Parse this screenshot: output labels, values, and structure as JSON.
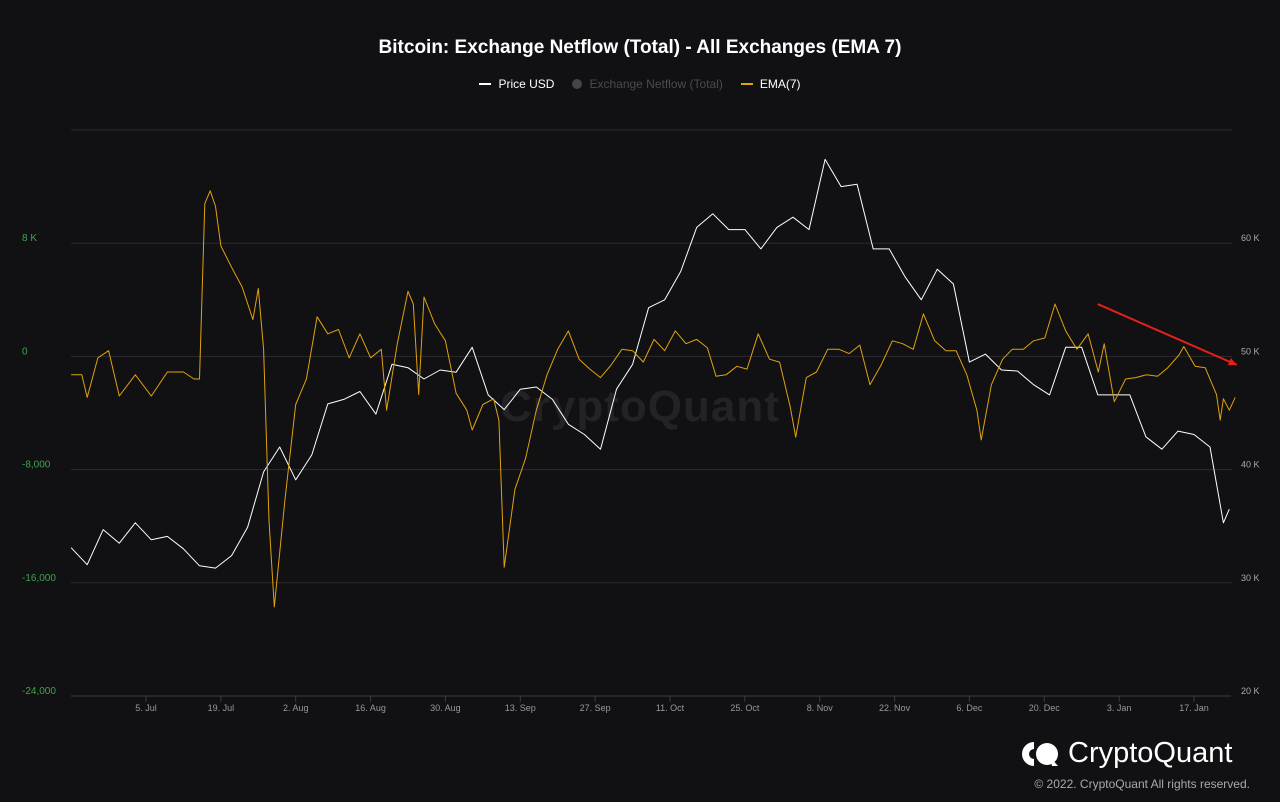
{
  "chart_data": {
    "type": "line",
    "title": "Bitcoin: Exchange Netflow (Total) - All Exchanges (EMA 7)",
    "legend": [
      {
        "name": "Price USD",
        "color": "#ffffff",
        "visible": true
      },
      {
        "name": "Exchange Netflow (Total)",
        "color": "#44444a",
        "visible": false
      },
      {
        "name": "EMA(7)",
        "color": "#e0a20e",
        "visible": true
      }
    ],
    "legend_position": "top-center",
    "x_start_date": "2021-06-21",
    "x_unit": "days since start",
    "x_range": [
      0,
      217
    ],
    "x_ticks": [
      {
        "day": 14,
        "label": "5. Jul"
      },
      {
        "day": 28,
        "label": "19. Jul"
      },
      {
        "day": 42,
        "label": "2. Aug"
      },
      {
        "day": 56,
        "label": "16. Aug"
      },
      {
        "day": 70,
        "label": "30. Aug"
      },
      {
        "day": 84,
        "label": "13. Sep"
      },
      {
        "day": 98,
        "label": "27. Sep"
      },
      {
        "day": 112,
        "label": "11. Oct"
      },
      {
        "day": 126,
        "label": "25. Oct"
      },
      {
        "day": 140,
        "label": "8. Nov"
      },
      {
        "day": 154,
        "label": "22. Nov"
      },
      {
        "day": 168,
        "label": "6. Dec"
      },
      {
        "day": 182,
        "label": "20. Dec"
      },
      {
        "day": 196,
        "label": "3. Jan"
      },
      {
        "day": 210,
        "label": "17. Jan"
      }
    ],
    "y_left": {
      "label": "Exchange Netflow",
      "range": [
        -24000,
        16000
      ],
      "color": "#3fa34d",
      "ticks": [
        {
          "v": 8000,
          "label": "8 K"
        },
        {
          "v": 0,
          "label": "0"
        },
        {
          "v": -8000,
          "label": "-8,000"
        },
        {
          "v": -16000,
          "label": "-16,000"
        },
        {
          "v": -24000,
          "label": "-24,000"
        }
      ]
    },
    "y_right": {
      "label": "Price USD",
      "range": [
        20000,
        70000
      ],
      "color": "#aaaaaa",
      "ticks": [
        {
          "v": 60000,
          "label": "60 K"
        },
        {
          "v": 50000,
          "label": "50 K"
        },
        {
          "v": 40000,
          "label": "40 K"
        },
        {
          "v": 30000,
          "label": "30 K"
        },
        {
          "v": 20000,
          "label": "20 K"
        }
      ]
    },
    "grid": true,
    "series": [
      {
        "name": "Price USD",
        "axis": "right",
        "unit": "USD (thousands)",
        "points": [
          [
            0,
            33.1
          ],
          [
            3,
            31.6
          ],
          [
            6,
            34.7
          ],
          [
            9,
            33.5
          ],
          [
            12,
            35.3
          ],
          [
            15,
            33.8
          ],
          [
            18,
            34.1
          ],
          [
            21,
            33.0
          ],
          [
            24,
            31.5
          ],
          [
            27,
            31.3
          ],
          [
            30,
            32.4
          ],
          [
            33,
            34.9
          ],
          [
            36,
            39.8
          ],
          [
            39,
            42.0
          ],
          [
            42,
            39.1
          ],
          [
            45,
            41.3
          ],
          [
            48,
            45.8
          ],
          [
            51,
            46.2
          ],
          [
            54,
            46.9
          ],
          [
            57,
            44.9
          ],
          [
            60,
            49.3
          ],
          [
            63,
            49.0
          ],
          [
            66,
            48.0
          ],
          [
            69,
            48.8
          ],
          [
            72,
            48.6
          ],
          [
            75,
            50.8
          ],
          [
            78,
            46.6
          ],
          [
            81,
            45.3
          ],
          [
            84,
            47.1
          ],
          [
            87,
            47.3
          ],
          [
            90,
            46.2
          ],
          [
            93,
            44.0
          ],
          [
            96,
            43.1
          ],
          [
            99,
            41.8
          ],
          [
            102,
            47.1
          ],
          [
            105,
            49.3
          ],
          [
            108,
            54.3
          ],
          [
            111,
            55.0
          ],
          [
            114,
            57.5
          ],
          [
            117,
            61.4
          ],
          [
            120,
            62.6
          ],
          [
            123,
            61.2
          ],
          [
            126,
            61.2
          ],
          [
            129,
            59.5
          ],
          [
            132,
            61.4
          ],
          [
            135,
            62.3
          ],
          [
            138,
            61.2
          ],
          [
            141,
            67.4
          ],
          [
            144,
            65.0
          ],
          [
            147,
            65.2
          ],
          [
            150,
            59.5
          ],
          [
            153,
            59.5
          ],
          [
            156,
            57.0
          ],
          [
            159,
            55.0
          ],
          [
            162,
            57.7
          ],
          [
            165,
            56.4
          ],
          [
            168,
            49.5
          ],
          [
            171,
            50.2
          ],
          [
            174,
            48.8
          ],
          [
            177,
            48.7
          ],
          [
            180,
            47.5
          ],
          [
            183,
            46.6
          ],
          [
            186,
            50.8
          ],
          [
            189,
            50.8
          ],
          [
            192,
            46.6
          ],
          [
            195,
            46.6
          ],
          [
            198,
            46.6
          ],
          [
            201,
            42.9
          ],
          [
            204,
            41.8
          ],
          [
            207,
            43.4
          ],
          [
            210,
            43.1
          ],
          [
            213,
            42.0
          ],
          [
            215.5,
            35.3
          ],
          [
            216.6,
            36.5
          ]
        ]
      },
      {
        "name": "EMA(7)",
        "axis": "left",
        "unit": "BTC (thousands)",
        "points": [
          [
            0,
            -1.3
          ],
          [
            2,
            -1.3
          ],
          [
            3,
            -2.9
          ],
          [
            5,
            -0.1
          ],
          [
            7,
            0.4
          ],
          [
            9,
            -2.8
          ],
          [
            12,
            -1.3
          ],
          [
            15,
            -2.8
          ],
          [
            18,
            -1.1
          ],
          [
            21,
            -1.1
          ],
          [
            23,
            -1.6
          ],
          [
            24,
            -1.6
          ],
          [
            25,
            10.8
          ],
          [
            26,
            11.7
          ],
          [
            27,
            10.6
          ],
          [
            28,
            7.8
          ],
          [
            30,
            6.3
          ],
          [
            32,
            4.9
          ],
          [
            34,
            2.6
          ],
          [
            35,
            4.8
          ],
          [
            36,
            0.5
          ],
          [
            37,
            -11.6
          ],
          [
            38,
            -17.7
          ],
          [
            40,
            -10.1
          ],
          [
            42,
            -3.4
          ],
          [
            44,
            -1.6
          ],
          [
            46,
            2.8
          ],
          [
            48,
            1.6
          ],
          [
            50,
            1.9
          ],
          [
            52,
            -0.1
          ],
          [
            54,
            1.6
          ],
          [
            56,
            -0.1
          ],
          [
            58,
            0.5
          ],
          [
            59,
            -3.8
          ],
          [
            61,
            0.9
          ],
          [
            63,
            4.6
          ],
          [
            64,
            3.7
          ],
          [
            65,
            -2.7
          ],
          [
            66,
            4.2
          ],
          [
            68,
            2.3
          ],
          [
            70,
            1.1
          ],
          [
            72,
            -2.6
          ],
          [
            74,
            -3.8
          ],
          [
            75,
            -5.2
          ],
          [
            77,
            -3.4
          ],
          [
            79,
            -3.0
          ],
          [
            80,
            -4.5
          ],
          [
            81,
            -14.9
          ],
          [
            83,
            -9.4
          ],
          [
            85,
            -7.2
          ],
          [
            87,
            -3.8
          ],
          [
            89,
            -1.3
          ],
          [
            91,
            0.5
          ],
          [
            93,
            1.8
          ],
          [
            95,
            -0.2
          ],
          [
            97,
            -0.9
          ],
          [
            99,
            -1.5
          ],
          [
            101,
            -0.6
          ],
          [
            103,
            0.5
          ],
          [
            105,
            0.4
          ],
          [
            107,
            -0.4
          ],
          [
            109,
            1.2
          ],
          [
            111,
            0.4
          ],
          [
            113,
            1.8
          ],
          [
            115,
            0.9
          ],
          [
            117,
            1.2
          ],
          [
            119,
            0.6
          ],
          [
            120.6,
            -1.4
          ],
          [
            122.5,
            -1.3
          ],
          [
            124.5,
            -0.7
          ],
          [
            126.4,
            -0.9
          ],
          [
            128.5,
            1.6
          ],
          [
            130.6,
            -0.2
          ],
          [
            132.5,
            -0.4
          ],
          [
            134.5,
            -3.6
          ],
          [
            135.5,
            -5.7
          ],
          [
            137.5,
            -1.5
          ],
          [
            139.4,
            -1.1
          ],
          [
            141.5,
            0.5
          ],
          [
            143.6,
            0.5
          ],
          [
            145.5,
            0.2
          ],
          [
            147.5,
            0.8
          ],
          [
            149.4,
            -2.0
          ],
          [
            151.5,
            -0.6
          ],
          [
            153.6,
            1.1
          ],
          [
            155.5,
            0.9
          ],
          [
            157.5,
            0.5
          ],
          [
            159.4,
            3.0
          ],
          [
            161.5,
            1.1
          ],
          [
            163.6,
            0.4
          ],
          [
            165.5,
            0.4
          ],
          [
            167.5,
            -1.3
          ],
          [
            169.4,
            -3.8
          ],
          [
            170.2,
            -5.9
          ],
          [
            172.1,
            -2.0
          ],
          [
            174.2,
            -0.2
          ],
          [
            176,
            0.5
          ],
          [
            178.1,
            0.5
          ],
          [
            180,
            1.1
          ],
          [
            182.1,
            1.3
          ],
          [
            184,
            3.7
          ],
          [
            186,
            1.8
          ],
          [
            188.1,
            0.5
          ],
          [
            190.2,
            1.6
          ],
          [
            192.1,
            -1.1
          ],
          [
            193.2,
            0.9
          ],
          [
            195.1,
            -3.2
          ],
          [
            197.2,
            -1.6
          ],
          [
            199.1,
            -1.5
          ],
          [
            201.1,
            -1.3
          ],
          [
            203.2,
            -1.4
          ],
          [
            205.1,
            -0.8
          ],
          [
            207.2,
            0.1
          ],
          [
            208.1,
            0.7
          ],
          [
            210.2,
            -0.7
          ],
          [
            212.1,
            -0.8
          ],
          [
            214.2,
            -2.7
          ],
          [
            214.9,
            -4.5
          ],
          [
            215.5,
            -3.0
          ],
          [
            216.6,
            -3.8
          ],
          [
            217.7,
            -2.9
          ]
        ]
      }
    ],
    "annotations": [
      {
        "type": "arrow",
        "color": "#e3201b",
        "from": [
          192,
          3700
        ],
        "to": [
          218,
          -600
        ],
        "axis": "left"
      }
    ]
  },
  "watermark": "CryptoQuant",
  "footer": {
    "logo_text": "CryptoQuant",
    "copyright": "© 2022. CryptoQuant All rights reserved."
  }
}
